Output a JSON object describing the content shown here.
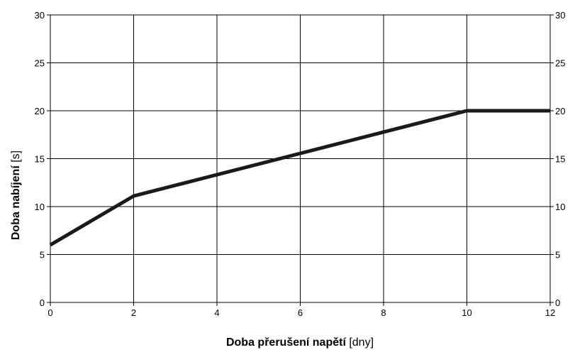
{
  "chart_data": {
    "type": "line",
    "xlabel_bold": "Doba přerušení napětí",
    "xlabel_unit": " [dny]",
    "ylabel_bold": "Doba nabíjení",
    "ylabel_unit": " [s]",
    "xlim": [
      0,
      12
    ],
    "ylim": [
      0,
      30
    ],
    "x_ticks": [
      0,
      2,
      4,
      6,
      8,
      10,
      12
    ],
    "y_ticks": [
      0,
      5,
      10,
      15,
      20,
      25,
      30
    ],
    "y_ticks_right": true,
    "grid": true,
    "series": [
      {
        "x": [
          0,
          2,
          10,
          12
        ],
        "y": [
          6,
          11.1,
          20,
          20
        ],
        "color": "#1a1a1a"
      }
    ]
  }
}
